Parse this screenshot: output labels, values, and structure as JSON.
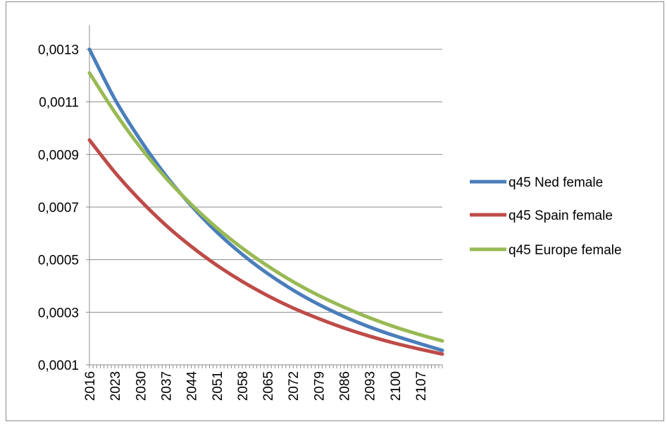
{
  "chart_data": {
    "type": "line",
    "title": "",
    "xlabel": "",
    "ylabel": "",
    "x_range": [
      2016,
      2113
    ],
    "x_tick_labels": [
      "2016",
      "2023",
      "2030",
      "2037",
      "2044",
      "2051",
      "2058",
      "2065",
      "2072",
      "2079",
      "2086",
      "2093",
      "2100",
      "2107"
    ],
    "y_tick_labels": [
      "0,0001",
      "0,0003",
      "0,0005",
      "0,0007",
      "0,0009",
      "0,0011",
      "0,0013"
    ],
    "ylim": [
      0.0001,
      0.0013
    ],
    "grid": true,
    "legend_position": "right",
    "series": [
      {
        "name": "q45 Ned female",
        "color": "#4a7ebb",
        "x": [
          2016,
          2023,
          2030,
          2037,
          2044,
          2051,
          2058,
          2065,
          2072,
          2079,
          2086,
          2093,
          2100,
          2107,
          2113
        ],
        "values": [
          0.0013,
          0.00111,
          0.000955,
          0.00082,
          0.000705,
          0.000605,
          0.00052,
          0.000447,
          0.000384,
          0.00033,
          0.000284,
          0.000244,
          0.00021,
          0.00018,
          0.000155
        ]
      },
      {
        "name": "q45 Spain female",
        "color": "#be4b48",
        "x": [
          2016,
          2023,
          2030,
          2037,
          2044,
          2051,
          2058,
          2065,
          2072,
          2079,
          2086,
          2093,
          2100,
          2107,
          2113
        ],
        "values": [
          0.000955,
          0.000832,
          0.000725,
          0.000631,
          0.00055,
          0.000479,
          0.000417,
          0.000363,
          0.000316,
          0.000276,
          0.00024,
          0.000209,
          0.000182,
          0.000159,
          0.000141
        ]
      },
      {
        "name": "q45 Europe female",
        "color": "#98b954",
        "x": [
          2016,
          2023,
          2030,
          2037,
          2044,
          2051,
          2058,
          2065,
          2072,
          2079,
          2086,
          2093,
          2100,
          2107,
          2113
        ],
        "values": [
          0.00121,
          0.00106,
          0.000927,
          0.000811,
          0.00071,
          0.000621,
          0.000544,
          0.000476,
          0.000416,
          0.000364,
          0.000319,
          0.000279,
          0.000244,
          0.000214,
          0.000191
        ]
      }
    ]
  }
}
